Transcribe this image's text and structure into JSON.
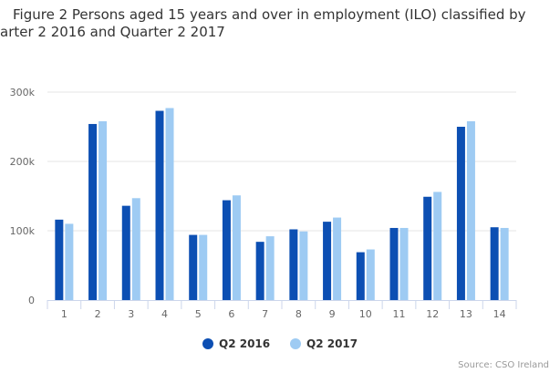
{
  "chart_data": {
    "type": "bar",
    "title_lines": [
      "Figure 2 Persons aged 15 years and over in employment (ILO) classified by",
      "arter 2 2016 and Quarter 2 2017"
    ],
    "categories": [
      "1",
      "2",
      "3",
      "4",
      "5",
      "6",
      "7",
      "8",
      "9",
      "10",
      "11",
      "12",
      "13",
      "14"
    ],
    "series": [
      {
        "name": "Q2 2016",
        "color": "#0c4fb3",
        "values": [
          116000,
          254000,
          136000,
          273000,
          94000,
          144000,
          84000,
          102000,
          113000,
          69000,
          104000,
          149000,
          250000,
          105000
        ]
      },
      {
        "name": "Q2 2017",
        "color": "#9ecbf3",
        "values": [
          110000,
          258000,
          147000,
          277000,
          94000,
          151000,
          92000,
          99000,
          119000,
          73000,
          104000,
          156000,
          258000,
          104000
        ]
      }
    ],
    "ylim": [
      0,
      300000
    ],
    "yticks": [
      0,
      100000,
      200000,
      300000
    ],
    "ytick_labels": [
      "0",
      "100k",
      "200k",
      "300k"
    ],
    "xlabel": "",
    "ylabel": "",
    "grid": true,
    "legend_position": "bottom-center",
    "source": "Source: CSO Ireland"
  }
}
